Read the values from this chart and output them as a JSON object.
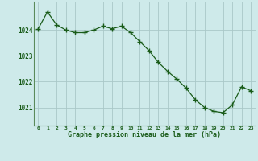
{
  "x": [
    0,
    1,
    2,
    3,
    4,
    5,
    6,
    7,
    8,
    9,
    10,
    11,
    12,
    13,
    14,
    15,
    16,
    17,
    18,
    19,
    20,
    21,
    22,
    23
  ],
  "y": [
    1024.05,
    1024.7,
    1024.2,
    1024.0,
    1023.9,
    1023.9,
    1024.0,
    1024.15,
    1024.05,
    1024.15,
    1023.9,
    1023.55,
    1023.2,
    1022.75,
    1022.4,
    1022.1,
    1021.75,
    1021.3,
    1021.0,
    1020.85,
    1020.8,
    1021.1,
    1021.8,
    1021.65
  ],
  "line_color": "#1a5c1a",
  "marker": "+",
  "marker_size": 4,
  "bg_color": "#ceeaea",
  "grid_color": "#aac8c8",
  "ylabel_ticks": [
    1021,
    1022,
    1023,
    1024
  ],
  "xlabel": "Graphe pression niveau de la mer (hPa)",
  "ylim": [
    1020.3,
    1025.1
  ],
  "xlim": [
    -0.5,
    23.5
  ],
  "axis_color": "#2d6e2d",
  "tick_color": "#1a5c1a"
}
